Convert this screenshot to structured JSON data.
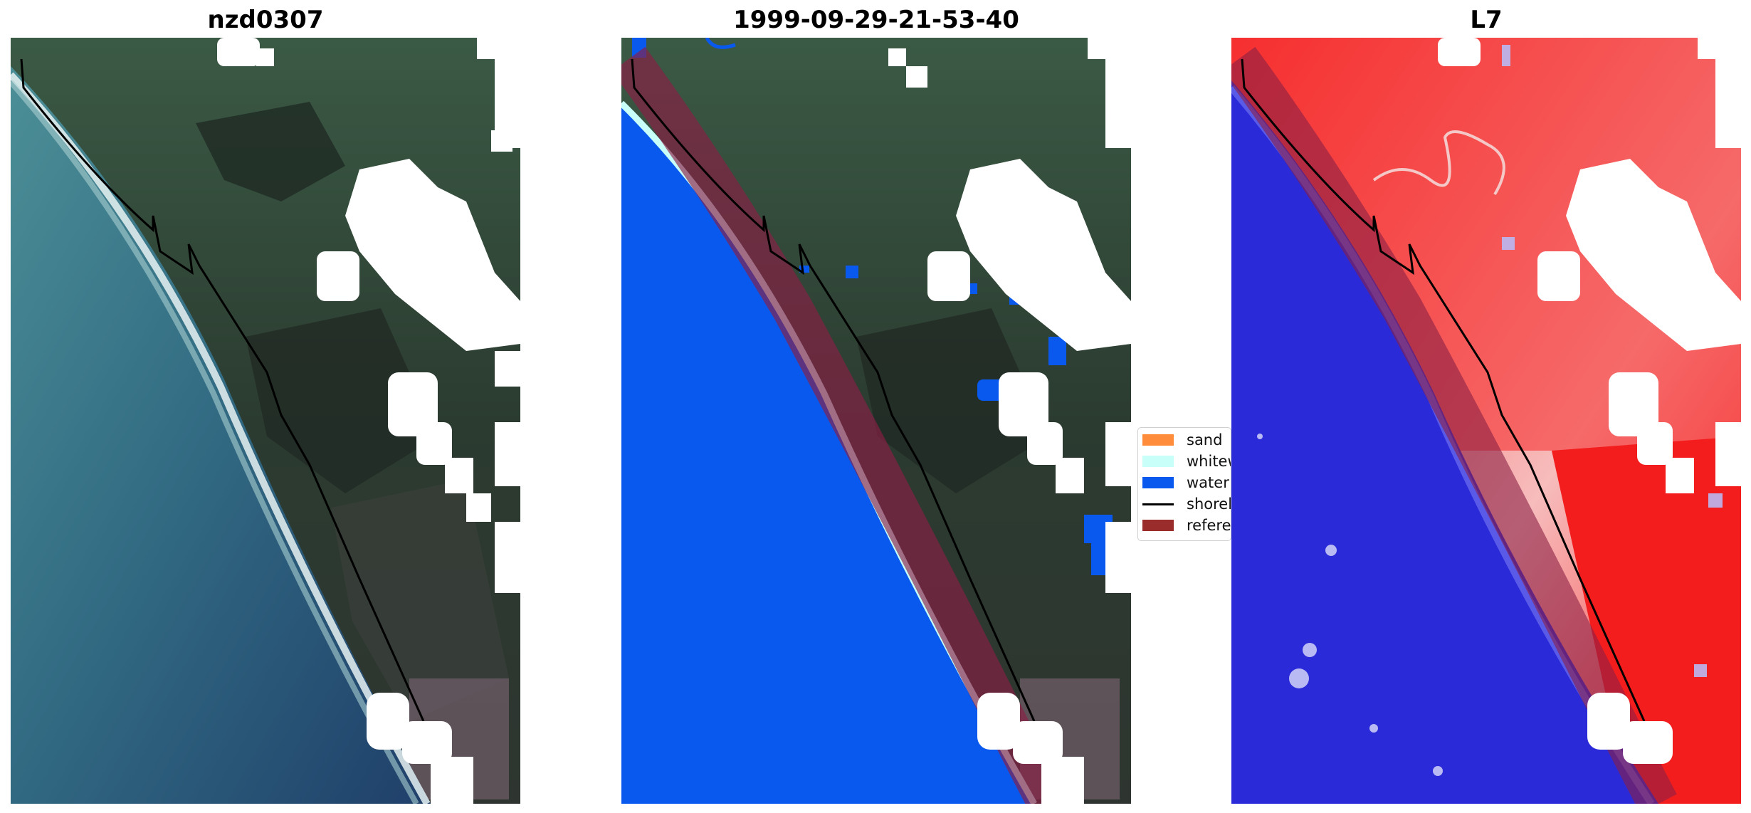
{
  "panels": [
    {
      "title": "nzd0307"
    },
    {
      "title": "1999-09-29-21-53-40"
    },
    {
      "title": "L7"
    }
  ],
  "legend": {
    "items": [
      {
        "label": "sand",
        "color": "#ff8c3a",
        "kind": "patch"
      },
      {
        "label": "whitew",
        "color": "#c8fff8",
        "kind": "patch"
      },
      {
        "label": "water",
        "color": "#0a59ee",
        "kind": "patch"
      },
      {
        "label": "shorel",
        "color": "#000000",
        "kind": "line"
      },
      {
        "label": "referer",
        "color": "#9b2c2c",
        "kind": "patch"
      }
    ]
  },
  "colors": {
    "ocean_rgb": "#2f6b80",
    "land_rgb": "#2e3f33",
    "cloud": "#ffffff",
    "water_class": "#0a59ee",
    "reference_buffer": "#8a1f45",
    "index_positive": "#f5262a",
    "index_negative": "#2a2ad8"
  }
}
